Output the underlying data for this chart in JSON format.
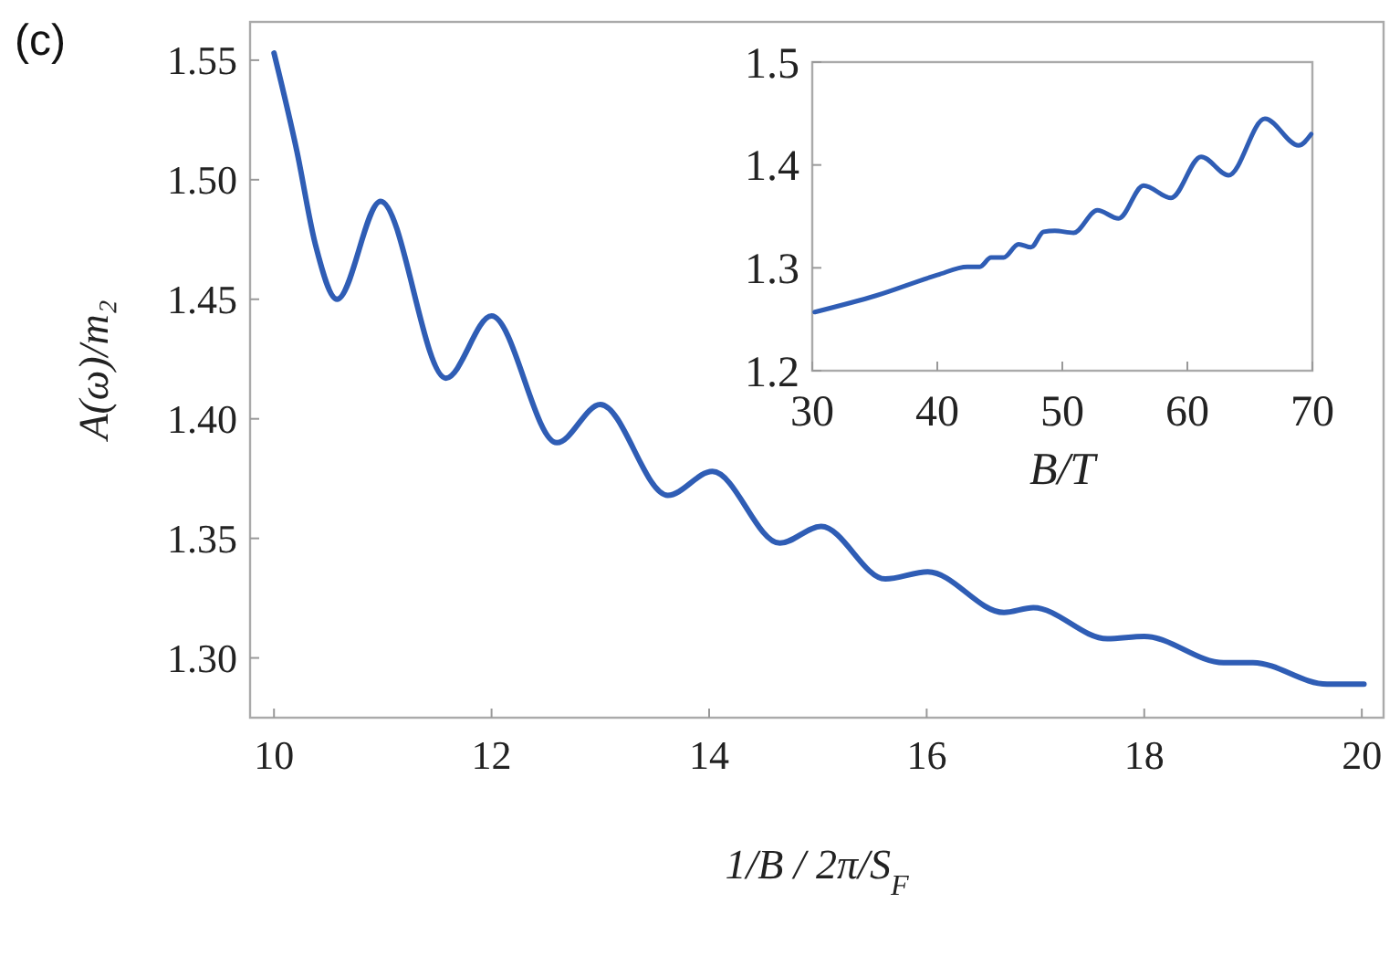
{
  "chart_data": [
    {
      "type": "line",
      "title": "(c)",
      "xlabel": "1/B / 2π/S$_{F}$",
      "ylabel": "A(ω)/m₂",
      "xlim": [
        9.78,
        20.2
      ],
      "ylim": [
        1.275,
        1.566
      ],
      "xticks": [
        10,
        12,
        14,
        16,
        18,
        20
      ],
      "yticks": [
        {
          "value": 1.3,
          "label": "1.30"
        },
        {
          "value": 1.35,
          "label": "1.35"
        },
        {
          "value": 1.4,
          "label": "1.40"
        },
        {
          "value": 1.45,
          "label": "1.45"
        },
        {
          "value": 1.5,
          "label": "1.50"
        },
        {
          "value": 1.55,
          "label": "1.55"
        }
      ],
      "grid": false,
      "series": [
        {
          "color": "#2f5db5",
          "x": [
            10.0,
            10.21,
            10.38,
            10.58,
            10.98,
            11.58,
            12.0,
            12.6,
            13.0,
            13.62,
            14.03,
            14.65,
            15.03,
            15.62,
            16.01,
            16.71,
            16.98,
            17.66,
            18.0,
            18.73,
            19.0,
            19.68,
            20.02
          ],
          "values": [
            1.553,
            1.512,
            1.473,
            1.45,
            1.491,
            1.417,
            1.443,
            1.39,
            1.406,
            1.368,
            1.378,
            1.348,
            1.355,
            1.333,
            1.336,
            1.319,
            1.321,
            1.308,
            1.309,
            1.298,
            1.298,
            1.289,
            1.289
          ]
        }
      ]
    },
    {
      "type": "line",
      "xlabel": "B/T",
      "xlim": [
        30,
        70
      ],
      "ylim": [
        1.2,
        1.5
      ],
      "xticks": [
        30,
        40,
        50,
        60,
        70
      ],
      "yticks": [
        1.2,
        1.3,
        1.4,
        1.5
      ],
      "grid": false,
      "series": [
        {
          "color": "#2f5db5",
          "x": [
            30.2,
            35.1,
            40.0,
            42.4,
            43.4,
            44.3,
            45.3,
            46.5,
            47.5,
            48.5,
            49.4,
            50.9,
            52.8,
            54.5,
            56.5,
            58.7,
            61.1,
            63.3,
            66.2,
            68.9,
            69.9
          ],
          "values": [
            1.257,
            1.273,
            1.293,
            1.301,
            1.301,
            1.31,
            1.31,
            1.323,
            1.32,
            1.335,
            1.336,
            1.334,
            1.356,
            1.348,
            1.38,
            1.368,
            1.408,
            1.39,
            1.445,
            1.419,
            1.43
          ]
        }
      ]
    }
  ]
}
